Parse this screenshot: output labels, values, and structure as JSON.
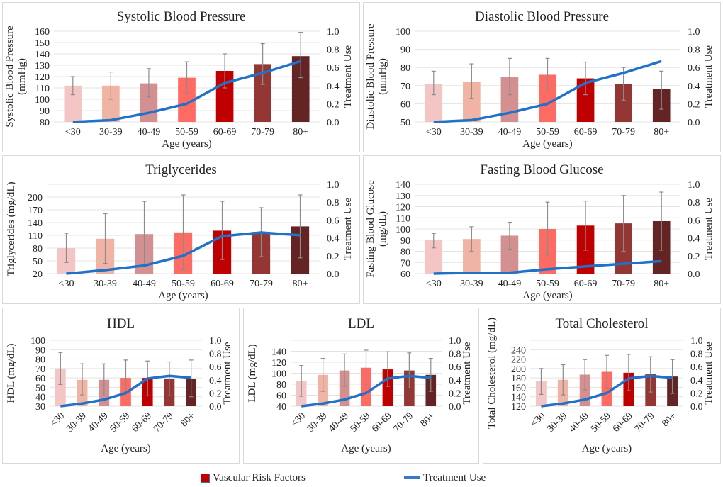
{
  "colors": {
    "bars": [
      "#f4c5c5",
      "#f0b3a4",
      "#d49090",
      "#fe6b63",
      "#c00000",
      "#943634",
      "#632423"
    ],
    "line": "#1f72c8",
    "error_bar": "#8c8c8c",
    "grid": "#e3e3e3"
  },
  "legend": {
    "bar_label": "Vascular Risk Factors",
    "line_label": "Treatment Use"
  },
  "chart_data": [
    {
      "type": "bar+line",
      "title": "Systolic Blood Pressure",
      "xlabel": "Age (years)",
      "ylabel": [
        "Systolic Blood Pressure",
        "(mmHg)"
      ],
      "y2label": "Treatment Use",
      "categories": [
        "<30",
        "30-39",
        "40-49",
        "50-59",
        "60-69",
        "70-79",
        "80+"
      ],
      "ylim": [
        80,
        160
      ],
      "yticks": [
        80,
        90,
        100,
        110,
        120,
        130,
        140,
        150,
        160
      ],
      "y2lim": [
        0,
        1
      ],
      "y2ticks": [
        "0.0",
        "0.2",
        "0.4",
        "0.6",
        "0.8",
        "1.0"
      ],
      "grid": true,
      "bar_values": [
        112,
        112,
        114,
        119,
        125,
        131,
        138
      ],
      "error_low": [
        104,
        100,
        102,
        105,
        110,
        113,
        119
      ],
      "error_high": [
        120,
        124,
        127,
        133,
        140,
        149,
        159
      ],
      "line_values": [
        0.0,
        0.02,
        0.1,
        0.2,
        0.43,
        0.54,
        0.67
      ]
    },
    {
      "type": "bar+line",
      "title": "Diastolic Blood Pressure",
      "xlabel": "Age (years)",
      "ylabel": [
        "Diastolic Blood Pressure",
        "(mmHg)"
      ],
      "y2label": "Treatment Use",
      "categories": [
        "<30",
        "30-39",
        "40-49",
        "50-59",
        "60-69",
        "70-79",
        "80+"
      ],
      "ylim": [
        50,
        100
      ],
      "yticks": [
        50,
        60,
        70,
        80,
        90,
        100
      ],
      "y2lim": [
        0,
        1
      ],
      "y2ticks": [
        "0.0",
        "0.2",
        "0.4",
        "0.6",
        "0.8",
        "1.0"
      ],
      "grid": true,
      "bar_values": [
        71,
        72,
        75,
        76,
        74,
        71,
        68
      ],
      "error_low": [
        65,
        63,
        65,
        67,
        65,
        62,
        57
      ],
      "error_high": [
        78,
        82,
        85,
        85,
        83,
        80,
        78
      ],
      "line_values": [
        0.0,
        0.02,
        0.1,
        0.2,
        0.43,
        0.54,
        0.67
      ]
    },
    {
      "type": "bar+line",
      "title": "Triglycerides",
      "xlabel": "Age (years)",
      "ylabel": [
        "Triglycerides (mg/dL)"
      ],
      "y2label": "Treatment Use",
      "categories": [
        "<30",
        "30-39",
        "40-49",
        "50-59",
        "60-69",
        "70-79",
        "80+"
      ],
      "ylim": [
        20,
        230
      ],
      "yticks": [
        20,
        50,
        80,
        110,
        140,
        170,
        200
      ],
      "y2lim": [
        0,
        1
      ],
      "y2ticks": [
        "0.0",
        "0.2",
        "0.4",
        "0.6",
        "0.8",
        "1.0"
      ],
      "grid": true,
      "bar_values": [
        80,
        102,
        113,
        117,
        121,
        118,
        131
      ],
      "error_low": [
        46,
        44,
        37,
        29,
        53,
        60,
        57
      ],
      "error_high": [
        115,
        161,
        190,
        205,
        190,
        175,
        205
      ],
      "line_values": [
        0.0,
        0.04,
        0.09,
        0.2,
        0.42,
        0.46,
        0.43
      ]
    },
    {
      "type": "bar+line",
      "title": "Fasting Blood Glucose",
      "xlabel": "Age (years)",
      "ylabel": [
        "Fasting Blood Glucose",
        "(mg/dL)"
      ],
      "y2label": "Treatment Use",
      "categories": [
        "<30",
        "30-39",
        "40-49",
        "50-59",
        "60-69",
        "70-79",
        "80+"
      ],
      "ylim": [
        60,
        140
      ],
      "yticks": [
        60,
        70,
        80,
        90,
        100,
        110,
        120,
        130,
        140
      ],
      "y2lim": [
        0,
        1
      ],
      "y2ticks": [
        "0.0",
        "0.2",
        "0.4",
        "0.6",
        "0.8",
        "1.0"
      ],
      "grid": true,
      "bar_values": [
        90,
        91,
        94,
        100,
        103,
        105,
        107
      ],
      "error_low": [
        83,
        80,
        82,
        76,
        81,
        80,
        81
      ],
      "error_high": [
        96,
        102,
        106,
        124,
        125,
        130,
        133
      ],
      "line_values": [
        0.0,
        0.01,
        0.01,
        0.05,
        0.08,
        0.11,
        0.14
      ]
    },
    {
      "type": "bar+line",
      "title": "HDL",
      "xlabel": "Age (years)",
      "ylabel": [
        "HDL (mg/dL)"
      ],
      "y2label": "Treatment Use",
      "categories": [
        "<30",
        "30-39",
        "40-49",
        "50-59",
        "60-69",
        "70-79",
        "80+"
      ],
      "ylim": [
        30,
        100
      ],
      "yticks": [
        30,
        40,
        50,
        60,
        70,
        80,
        90,
        100
      ],
      "y2lim": [
        0,
        1
      ],
      "y2ticks": [
        "0.0",
        "0.2",
        "0.4",
        "0.6",
        "0.8",
        "1.0"
      ],
      "grid": true,
      "bar_values": [
        70,
        58,
        58,
        60,
        60,
        59,
        59
      ],
      "error_low": [
        53,
        42,
        41,
        41,
        41,
        41,
        40
      ],
      "error_high": [
        87,
        75,
        75,
        79,
        78,
        77,
        79
      ],
      "line_values": [
        0.0,
        0.04,
        0.1,
        0.2,
        0.42,
        0.46,
        0.43
      ]
    },
    {
      "type": "bar+line",
      "title": "LDL",
      "xlabel": "Age (years)",
      "ylabel": [
        "LDL (mg/dL)"
      ],
      "y2label": "Treatment Use",
      "categories": [
        "<30",
        "30-39",
        "40-49",
        "50-59",
        "60-69",
        "70-79",
        "80+"
      ],
      "ylim": [
        40,
        160
      ],
      "yticks": [
        40,
        60,
        80,
        100,
        120,
        140
      ],
      "y2lim": [
        0,
        1
      ],
      "y2ticks": [
        "0.0",
        "0.2",
        "0.4",
        "0.6",
        "0.8",
        "1.0"
      ],
      "grid": true,
      "bar_values": [
        86,
        97,
        105,
        110,
        107,
        105,
        97
      ],
      "error_low": [
        58,
        67,
        76,
        80,
        76,
        73,
        67
      ],
      "error_high": [
        114,
        127,
        135,
        142,
        139,
        137,
        127
      ],
      "line_values": [
        0.0,
        0.04,
        0.1,
        0.2,
        0.42,
        0.46,
        0.43
      ]
    },
    {
      "type": "bar+line",
      "title": "Total Cholesterol",
      "xlabel": "Age (years)",
      "ylabel": [
        "Total Cholesterol (mg/dL)"
      ],
      "y2label": "Treatment Use",
      "categories": [
        "<30",
        "30-39",
        "40-49",
        "50-59",
        "60-69",
        "70-79",
        "80+"
      ],
      "ylim": [
        120,
        260
      ],
      "yticks": [
        120,
        140,
        160,
        180,
        200,
        220,
        240
      ],
      "y2lim": [
        0,
        1
      ],
      "y2ticks": [
        "0.0",
        "0.2",
        "0.4",
        "0.6",
        "0.8",
        "1.0"
      ],
      "grid": true,
      "bar_values": [
        173,
        176,
        187,
        193,
        191,
        188,
        183
      ],
      "error_low": [
        145,
        144,
        155,
        157,
        153,
        150,
        147
      ],
      "error_high": [
        200,
        208,
        219,
        228,
        230,
        225,
        219
      ],
      "line_values": [
        0.0,
        0.04,
        0.1,
        0.2,
        0.42,
        0.46,
        0.43
      ]
    }
  ]
}
